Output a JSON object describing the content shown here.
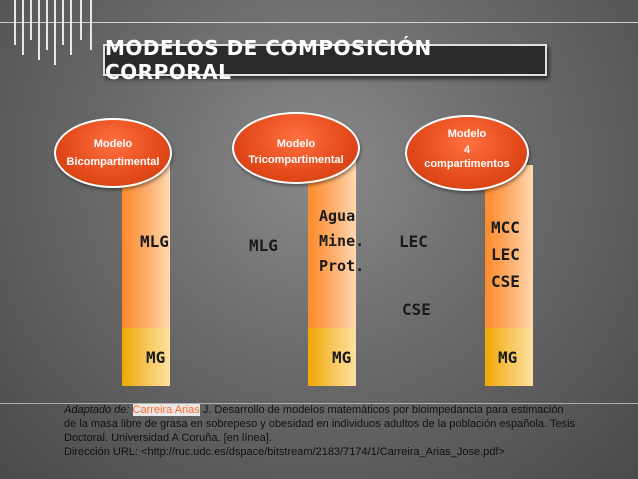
{
  "title": "MODELOS DE COMPOSICIÓN CORPORAL",
  "models": [
    {
      "line1": "Modelo",
      "line2": "Bicompartimental",
      "line3": ""
    },
    {
      "line1": "Modelo",
      "line2": "Tricompartimental",
      "line3": ""
    },
    {
      "line1": "Modelo",
      "line2": "4",
      "line3": "compartimentos"
    }
  ],
  "labels": {
    "mlg1": "MLG",
    "mlg2": "MLG",
    "agua": "Agua",
    "mine": "Mine.",
    "prot": "Prot.",
    "lec_out": "LEC",
    "cse_out": "CSE",
    "mcc": "MCC",
    "lec": "LEC",
    "cse": "CSE",
    "mg1": "MG",
    "mg2": "MG",
    "mg3": "MG"
  },
  "note": {
    "prefix": "Adaptado de:",
    "author": "Carreira Arias",
    "line1": " J. Desarrollo de modelos matemáticos por bioimpedancia para estimación",
    "line2": "de la masa libre de grasa en sobrepeso y obesidad en individuos adultos de la población española. Tesis",
    "line3": "Doctoral. Universidad A Coruña. [en línea].",
    "line4": "Dirección URL: <http://ruc.udc.es/dspace/bitstream/2183/7174/1/Carreira_Arias_Jose.pdf>"
  }
}
